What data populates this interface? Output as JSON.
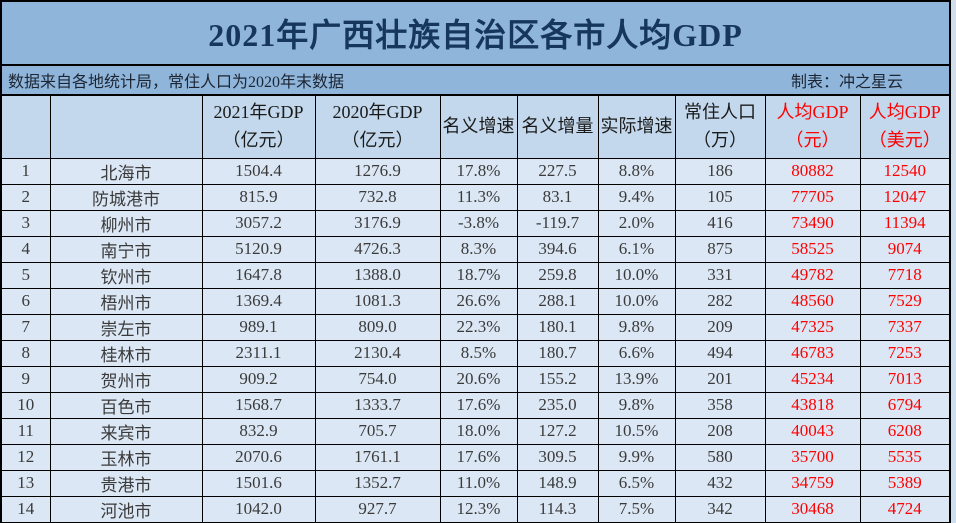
{
  "title": "2021年广西壮族自治区各市人均GDP",
  "notes": {
    "source": "数据来自各地统计局，常住人口为2020年末数据",
    "credit": "制表：冲之星云"
  },
  "colors": {
    "title_bg": "#8FB5DA",
    "header_bg": "#C3D8EC",
    "row_bg": "#DBE7F4",
    "border": "#000000",
    "title_text": "#16365C",
    "accent_red": "#FE0000"
  },
  "chart_data": {
    "type": "table",
    "title": "2021年广西壮族自治区各市人均GDP",
    "columns": [
      {
        "key": "rank",
        "label": "",
        "red": false
      },
      {
        "key": "city",
        "label": "",
        "red": false
      },
      {
        "key": "gdp_2021",
        "label": "2021年GDP\n（亿元）",
        "red": false
      },
      {
        "key": "gdp_2020",
        "label": "2020年GDP\n（亿元）",
        "red": false
      },
      {
        "key": "nominal_growth",
        "label": "名义增速",
        "red": false
      },
      {
        "key": "nominal_increase",
        "label": "名义增量",
        "red": false
      },
      {
        "key": "real_growth",
        "label": "实际增速",
        "red": false
      },
      {
        "key": "population",
        "label": "常住人口\n（万）",
        "red": false
      },
      {
        "key": "gdp_per_capita_cny",
        "label": "人均GDP\n（元）",
        "red": true
      },
      {
        "key": "gdp_per_capita_usd",
        "label": "人均GDP\n（美元）",
        "red": true
      }
    ],
    "rows": [
      [
        "1",
        "北海市",
        "1504.4",
        "1276.9",
        "17.8%",
        "227.5",
        "8.8%",
        "186",
        "80882",
        "12540"
      ],
      [
        "2",
        "防城港市",
        "815.9",
        "732.8",
        "11.3%",
        "83.1",
        "9.4%",
        "105",
        "77705",
        "12047"
      ],
      [
        "3",
        "柳州市",
        "3057.2",
        "3176.9",
        "-3.8%",
        "-119.7",
        "2.0%",
        "416",
        "73490",
        "11394"
      ],
      [
        "4",
        "南宁市",
        "5120.9",
        "4726.3",
        "8.3%",
        "394.6",
        "6.1%",
        "875",
        "58525",
        "9074"
      ],
      [
        "5",
        "钦州市",
        "1647.8",
        "1388.0",
        "18.7%",
        "259.8",
        "10.0%",
        "331",
        "49782",
        "7718"
      ],
      [
        "6",
        "梧州市",
        "1369.4",
        "1081.3",
        "26.6%",
        "288.1",
        "10.0%",
        "282",
        "48560",
        "7529"
      ],
      [
        "7",
        "崇左市",
        "989.1",
        "809.0",
        "22.3%",
        "180.1",
        "9.8%",
        "209",
        "47325",
        "7337"
      ],
      [
        "8",
        "桂林市",
        "2311.1",
        "2130.4",
        "8.5%",
        "180.7",
        "6.6%",
        "494",
        "46783",
        "7253"
      ],
      [
        "9",
        "贺州市",
        "909.2",
        "754.0",
        "20.6%",
        "155.2",
        "13.9%",
        "201",
        "45234",
        "7013"
      ],
      [
        "10",
        "百色市",
        "1568.7",
        "1333.7",
        "17.6%",
        "235.0",
        "9.8%",
        "358",
        "43818",
        "6794"
      ],
      [
        "11",
        "来宾市",
        "832.9",
        "705.7",
        "18.0%",
        "127.2",
        "10.5%",
        "208",
        "40043",
        "6208"
      ],
      [
        "12",
        "玉林市",
        "2070.6",
        "1761.1",
        "17.6%",
        "309.5",
        "9.9%",
        "580",
        "35700",
        "5535"
      ],
      [
        "13",
        "贵港市",
        "1501.6",
        "1352.7",
        "11.0%",
        "148.9",
        "6.5%",
        "432",
        "34759",
        "5389"
      ],
      [
        "14",
        "河池市",
        "1042.0",
        "927.7",
        "12.3%",
        "114.3",
        "7.5%",
        "342",
        "30468",
        "4724"
      ]
    ]
  }
}
